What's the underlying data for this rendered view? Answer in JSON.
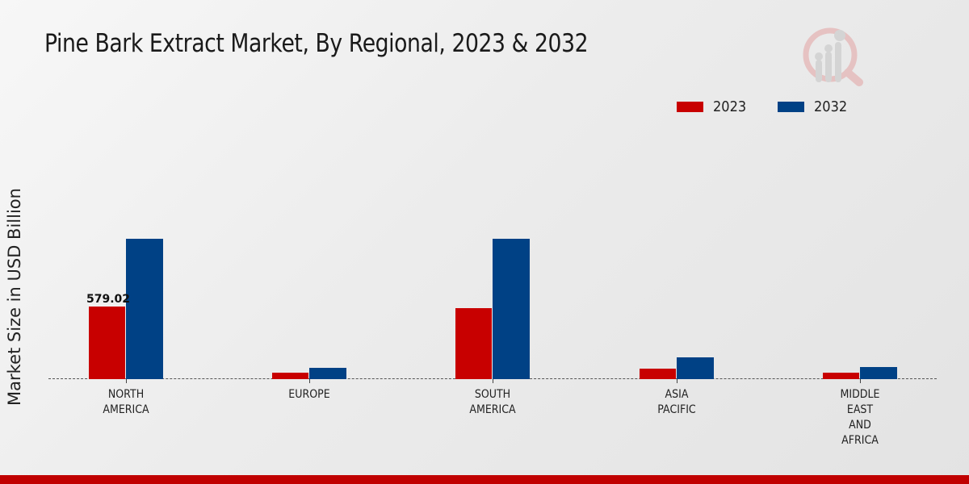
{
  "header": {
    "title": "Pine Bark Extract Market, By Regional, 2023 & 2032",
    "logo_icon": "magnifier-bar-chart-logo-icon"
  },
  "legend": {
    "items": [
      {
        "label": "2023",
        "color": "#c80000"
      },
      {
        "label": "2032",
        "color": "#004185"
      }
    ]
  },
  "axes": {
    "ylabel": "Market Size in USD Billion"
  },
  "categories": [
    {
      "label": "NORTH\nAMERICA",
      "value_2023": 579.02,
      "value_2032": 1119,
      "data_label": "579.02"
    },
    {
      "label": "EUROPE",
      "value_2023": 51,
      "value_2032": 90,
      "data_label": ""
    },
    {
      "label": "SOUTH\nAMERICA",
      "value_2023": 566,
      "value_2032": 1119,
      "data_label": ""
    },
    {
      "label": "ASIA\nPACIFIC",
      "value_2023": 84,
      "value_2032": 174,
      "data_label": ""
    },
    {
      "label": "MIDDLE\nEAST\nAND\nAFRICA",
      "value_2023": 51,
      "value_2032": 96,
      "data_label": ""
    }
  ],
  "colors": {
    "series_2023": "#c80000",
    "series_2032": "#004185",
    "footer": "#c00000"
  },
  "chart_data": {
    "type": "bar",
    "title": "Pine Bark Extract Market, By Regional, 2023 & 2032",
    "xlabel": "",
    "ylabel": "Market Size in USD Billion",
    "categories": [
      "NORTH AMERICA",
      "EUROPE",
      "SOUTH AMERICA",
      "ASIA PACIFIC",
      "MIDDLE EAST AND AFRICA"
    ],
    "series": [
      {
        "name": "2023",
        "color": "#c80000",
        "values": [
          579.02,
          51,
          566,
          84,
          51
        ]
      },
      {
        "name": "2032",
        "color": "#004185",
        "values": [
          1119,
          90,
          1119,
          174,
          96
        ]
      }
    ],
    "annotations": [
      {
        "category": "NORTH AMERICA",
        "series": "2023",
        "text": "579.02"
      }
    ],
    "legend_position": "top-right",
    "grid": false,
    "ylim": [
      0,
      1300
    ]
  }
}
